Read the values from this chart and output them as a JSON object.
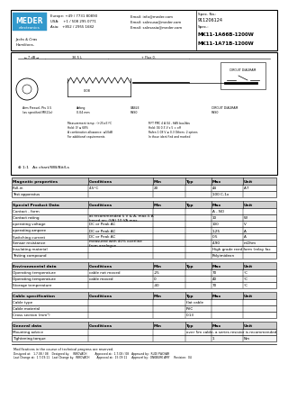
{
  "title1": "MK11-1A66B-1200W",
  "title2": "MK11-1A71B-1200W",
  "spec_no": "911206124",
  "header_color": "#3399cc",
  "mag_props_header": [
    "Magnetic properties",
    "Conditions",
    "Min",
    "Typ",
    "Max",
    "Unit"
  ],
  "mag_props_rows": [
    [
      "Pull-in",
      "4.5°C",
      "20",
      "",
      "44",
      "A·T"
    ],
    [
      "Test apparatus",
      "",
      "",
      "",
      "100 C-1x",
      ""
    ]
  ],
  "sp_header": [
    "Special Product Data",
    "Conditions",
    "Min",
    "Typ",
    "Max",
    "Unit"
  ],
  "sp_rows": [
    [
      "Contact - form",
      "",
      "",
      "",
      "A - NO",
      ""
    ],
    [
      "Contact rating",
      "at recommended 5 V & A, max.5 A\nbased on: (VA) 10 VA max.",
      "",
      "",
      "10",
      "W"
    ],
    [
      "operating voltage",
      "DC or Peak AC",
      "",
      "",
      "100",
      "V"
    ],
    [
      "operating ampere",
      "DC or Peak AC",
      "",
      "",
      "1.25",
      "A"
    ],
    [
      "Switching current",
      "DC or Peak AC",
      "",
      "",
      "0.5",
      "A"
    ],
    [
      "Sensor resistance",
      "measured with 40% overline\nfrom analogue",
      "",
      "",
      "4.90",
      "mOhm"
    ],
    [
      "Insulating material",
      "",
      "",
      "",
      "High grade reed form (relay fac",
      ""
    ],
    [
      "Testing compound",
      "",
      "",
      "",
      "Polyimideon",
      ""
    ]
  ],
  "env_header": [
    "Environmental data",
    "Conditions",
    "Min",
    "Typ",
    "Max",
    "Unit"
  ],
  "env_rows": [
    [
      "Operating temperature",
      "cable not moved",
      "-25",
      "",
      "70",
      "°C"
    ],
    [
      "Operating temperature",
      "cable moved",
      "0",
      "",
      "40",
      "°C"
    ],
    [
      "Storage temperature",
      "",
      "-40",
      "",
      "70",
      "°C"
    ]
  ],
  "cab_header": [
    "Cable specification",
    "Conditions",
    "Min",
    "Typ",
    "Max",
    "Unit"
  ],
  "cab_rows": [
    [
      "Cable type",
      "",
      "",
      "flat cable",
      "",
      ""
    ],
    [
      "Cable material",
      "",
      "",
      "PVC",
      "",
      ""
    ],
    [
      "Cross section (mm²)",
      "",
      "",
      "0.13",
      "",
      ""
    ]
  ],
  "gen_header": [
    "General data",
    "Conditions",
    "Min",
    "Typ",
    "Max",
    "Unit"
  ],
  "gen_rows": [
    [
      "Mounting advice",
      "",
      "",
      "over 5m cable, a series resistor is recommended",
      "",
      ""
    ],
    [
      "Tightening torque",
      "",
      "",
      "",
      "1",
      "Nm"
    ]
  ],
  "footer_text": "Modifications in the course of technical progress are reserved.",
  "footer_line1": "Designed at:   1.7.08 / 08    Designed by:    WROVACH         Approved at:  1.7.08 / 08   Approved by:  RUDI FWDYAR",
  "footer_line2": "Last Change at:  1.7.09.11   Last Change by:  WROVACH        Approval at:  15.09.11     Approval by:  ONKBURK AMY     Revision:  04"
}
